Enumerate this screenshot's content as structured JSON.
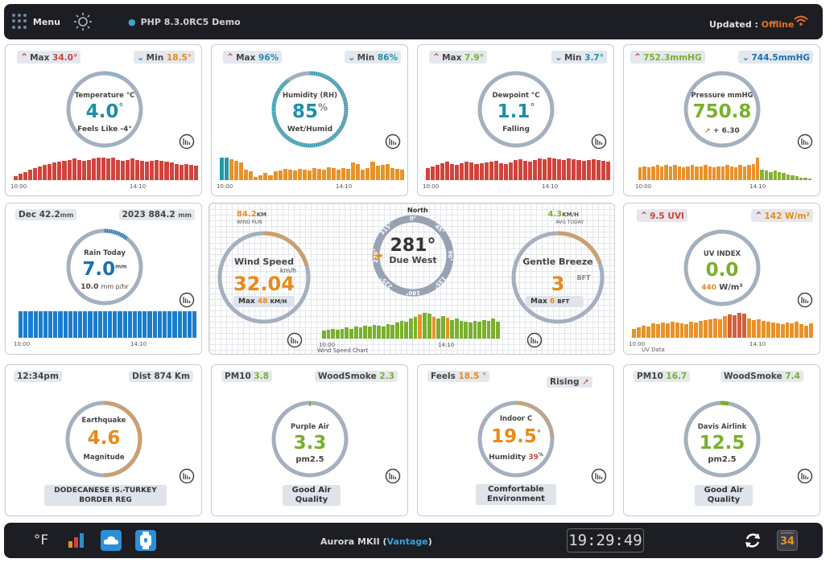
{
  "topbar": {
    "menu_label": "Menu",
    "php_label": "PHP 8.3.0RC5 Demo",
    "updated_label": "Updated :",
    "updated_status": "Offline"
  },
  "temperature": {
    "max_label": "Max",
    "max_value": "34.0°",
    "min_label": "Min",
    "min_value": "18.5°",
    "title": "Temperature °C",
    "value": "4.0",
    "unit": "°",
    "feels": "Feels Like -4°",
    "time_start": "10:00",
    "time_end": "14:10",
    "bars": [
      4,
      6,
      8,
      10,
      12,
      13,
      15,
      16,
      17,
      18,
      19,
      20,
      21,
      20,
      19,
      20,
      21,
      22,
      22,
      21,
      22,
      20,
      19,
      20,
      21,
      20,
      19,
      18,
      19,
      20,
      19,
      18,
      17,
      16,
      15,
      16,
      15,
      14
    ],
    "bar_color": "#d0443c"
  },
  "humidity": {
    "max_label": "Max",
    "max_value": "96%",
    "min_label": "Min",
    "min_value": "86%",
    "title": "Humidity (RH)",
    "value": "85",
    "unit": "%",
    "sub": "Wet/Humid",
    "time_start": "10:00",
    "time_end": "14:10",
    "bars": [
      26,
      26,
      24,
      22,
      20,
      12,
      10,
      4,
      6,
      8,
      6,
      10,
      11,
      13,
      12,
      11,
      13,
      12,
      11,
      14,
      13,
      12,
      15,
      14,
      12,
      14,
      13,
      20,
      19,
      12,
      14,
      21,
      17,
      18,
      19,
      14,
      13,
      12
    ],
    "bar_color": "#e8922a",
    "bar_first_color": "#1f9aa8"
  },
  "dewpoint": {
    "max_label": "Max",
    "max_value": "7.9°",
    "min_label": "Min",
    "min_value": "3.7°",
    "title": "Dewpoint °C",
    "value": "1.1",
    "unit": "°",
    "sub": "Falling",
    "time_start": "10:00",
    "time_end": "14:10",
    "bars": [
      14,
      16,
      18,
      20,
      22,
      19,
      18,
      20,
      22,
      21,
      19,
      20,
      21,
      22,
      23,
      20,
      19,
      21,
      24,
      25,
      23,
      22,
      24,
      26,
      25,
      27,
      26,
      25,
      24,
      26,
      25,
      24,
      23,
      24,
      25,
      24,
      23,
      22
    ],
    "bar_color": "#d0443c"
  },
  "pressure": {
    "max_value": "752.3mmHG",
    "min_value": "744.5mmHG",
    "title": "Pressure mmHG",
    "value": "750.8",
    "trend": "+ 6.30",
    "time_start": "10:00",
    "time_end": "14:10",
    "bars": [
      14,
      15,
      14,
      15,
      16,
      15,
      16,
      15,
      16,
      15,
      14,
      15,
      16,
      15,
      15,
      16,
      15,
      14,
      15,
      15,
      16,
      15,
      14,
      16,
      15,
      16,
      17,
      24,
      11,
      10,
      9,
      10,
      9,
      8,
      6,
      5,
      4,
      3,
      3,
      2
    ],
    "bar_color": "#e8922a",
    "bar_color2": "#8ab038"
  },
  "rain": {
    "month_label": "Dec 42.2",
    "month_unit": "mm",
    "year_label": "2023 884.2",
    "year_unit": "mm",
    "title": "Rain Today",
    "value": "7.0",
    "unit": "mm",
    "rate": "10.0",
    "rate_unit": "mm p/hr",
    "time_start": "10:00",
    "time_end": "14:10",
    "bar_count": 36,
    "bar_color": "#1a7dcc"
  },
  "wind": {
    "run_value": "84.2",
    "run_unit": "KM",
    "run_label": "WIND RUN",
    "speed_title": "Wind Speed",
    "speed_unit": "km/h",
    "speed_value": "32.04",
    "max_label": "Max",
    "max_value": "48",
    "max_unit": "KM/H",
    "compass_north": "North",
    "dir_value": "281°",
    "dir_text": "Due West",
    "dir_ticks": [
      "0°",
      "45°",
      "90°",
      "135°",
      "180°",
      "225°",
      "270°",
      "315°"
    ],
    "avg_value": "4.3",
    "avg_unit": "KM/H",
    "avg_label": "AVG TODAY",
    "beaufort_title": "Gentle Breeze",
    "beaufort_value": "3",
    "beaufort_unit": "BFT",
    "bft_max_label": "Max",
    "bft_max_value": "6",
    "bft_max_unit": "BFT",
    "time_start": "10:00",
    "time_end": "14:10",
    "chart_label": "Wind Speed Chart",
    "bars": [
      8,
      9,
      10,
      9,
      10,
      11,
      10,
      12,
      11,
      13,
      12,
      14,
      13,
      12,
      15,
      14,
      16,
      18,
      17,
      20,
      22,
      24,
      26,
      25,
      22,
      20,
      23,
      21,
      19,
      20,
      18,
      17,
      16,
      18,
      17,
      19,
      18,
      20,
      17
    ],
    "bar_color": "#7ab02c",
    "bar_hi_color": "#e8922a"
  },
  "uv": {
    "max_value": "9.5 UVI",
    "solar_max": "142 W/m²",
    "title": "UV INDEX",
    "value": "0.0",
    "solar_value": "440",
    "solar_unit": "W/m²",
    "time_start": "10:00",
    "time_end": "14:10",
    "chart_label": "UV Data",
    "bars": [
      10,
      12,
      14,
      13,
      16,
      15,
      17,
      16,
      18,
      17,
      16,
      15,
      18,
      17,
      19,
      20,
      21,
      22,
      21,
      24,
      26,
      25,
      28,
      27,
      22,
      20,
      21,
      19,
      18,
      17,
      16,
      15,
      17,
      16,
      18,
      15,
      14,
      16
    ],
    "bar_color": "#e8922a"
  },
  "earthquake": {
    "time": "12:34pm",
    "dist": "Dist 874 Km",
    "title": "Earthquake",
    "value": "4.6",
    "sub": "Magnitude",
    "location": "DODECANESE IS.-TURKEY BORDER REG"
  },
  "purpleair": {
    "pm10_label": "PM10",
    "pm10_value": "3.8",
    "smoke_label": "WoodSmoke",
    "smoke_value": "2.3",
    "title": "Purple Air",
    "value": "3.3",
    "sub": "pm2.5",
    "status": "Good Air Quality"
  },
  "indoor": {
    "feels_label": "Feels",
    "feels_value": "18.5 °",
    "trend_label": "Rising",
    "title": "Indoor C",
    "value": "19.5",
    "unit": "°",
    "humidity_label": "Humidity",
    "humidity_value": "39",
    "humidity_unit": "%",
    "status": "Comfortable Environment"
  },
  "airlink": {
    "pm10_label": "PM10",
    "pm10_value": "16.7",
    "smoke_label": "WoodSmoke",
    "smoke_value": "7.4",
    "title": "Davis Airlink",
    "value": "12.5",
    "sub": "pm2.5",
    "status": "Good Air Quality"
  },
  "bottombar": {
    "station_name": "Aurora MKII (",
    "station_model": "Vantage",
    "station_close": ")",
    "clock": "19:29:49",
    "unit_toggle": "°F",
    "badge_top": "weather",
    "badge_number": "34"
  }
}
